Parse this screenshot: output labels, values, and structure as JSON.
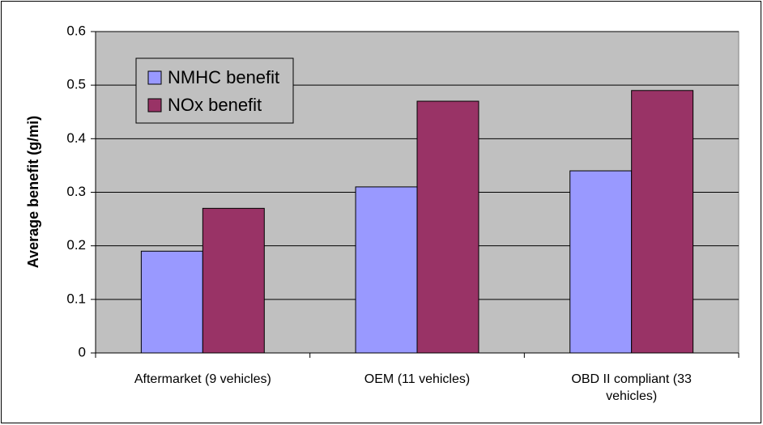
{
  "chart_data": {
    "type": "bar",
    "categories": [
      "Aftermarket (9 vehicles)",
      "OEM (11 vehicles)",
      "OBD II compliant (33 vehicles)"
    ],
    "series": [
      {
        "name": "NMHC benefit",
        "color": "#9999ff",
        "values": [
          0.19,
          0.31,
          0.34
        ]
      },
      {
        "name": "NOx benefit",
        "color": "#993366",
        "values": [
          0.27,
          0.47,
          0.49
        ]
      }
    ],
    "y_label": "Average benefit (g/mi)",
    "ylim": [
      0,
      0.6
    ],
    "yticks": [
      0,
      0.1,
      0.2,
      0.3,
      0.4,
      0.5,
      0.6
    ],
    "grid": true,
    "plot_background": "#c0c0c0",
    "legend": "upper left"
  }
}
